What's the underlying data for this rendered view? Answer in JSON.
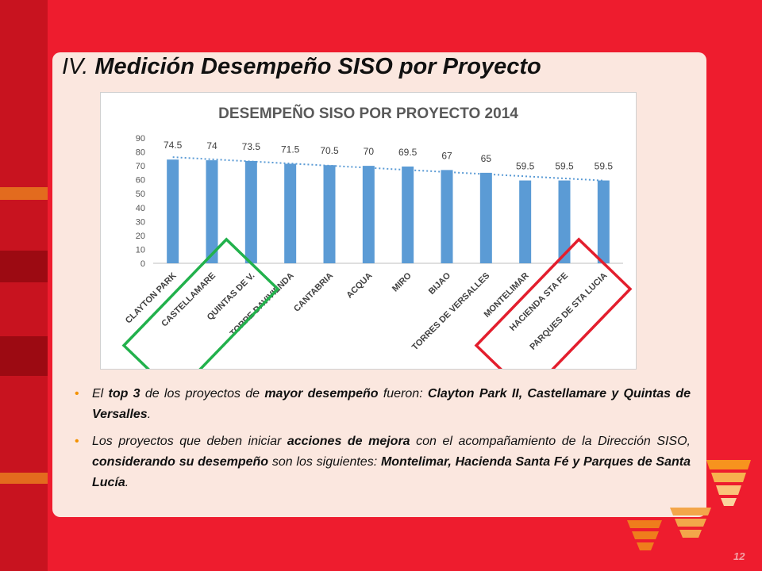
{
  "slide": {
    "title_roman": "IV.",
    "title": "Medición Desempeño SISO por Proyecto",
    "page_number": "12",
    "colors": {
      "background": "#ee1c2e",
      "panel": "#fbe7df",
      "bar": "#5b9bd5",
      "trend": "#5b9bd5",
      "bullet": "#f39200",
      "green_frame": "#22b14c",
      "red_frame": "#e31e2d"
    }
  },
  "bullets": [
    {
      "parts": [
        {
          "t": "El ",
          "b": false
        },
        {
          "t": "top 3",
          "b": true
        },
        {
          "t": " de los proyectos de ",
          "b": false
        },
        {
          "t": "mayor desempeño",
          "b": true
        },
        {
          "t": " fueron: ",
          "b": false
        },
        {
          "t": "Clayton Park II, Castellamare y Quintas de  Versalles",
          "b": true
        },
        {
          "t": ".",
          "b": false
        }
      ]
    },
    {
      "parts": [
        {
          "t": "Los proyectos que deben iniciar ",
          "b": false
        },
        {
          "t": "acciones de mejora",
          "b": true
        },
        {
          "t": " con el acompañamiento de la Dirección SISO, ",
          "b": false
        },
        {
          "t": "considerando su desempeño",
          "b": true
        },
        {
          "t": " son los siguientes: ",
          "b": false
        },
        {
          "t": "Montelimar, Hacienda Santa Fé y Parques de Santa Lucía",
          "b": true
        },
        {
          "t": ".",
          "b": false
        }
      ]
    }
  ],
  "chart_data": {
    "type": "bar",
    "title": "DESEMPEÑO SISO POR PROYECTO 2014",
    "xlabel": "",
    "ylabel": "",
    "ylim": [
      0,
      90
    ],
    "yticks": [
      0,
      10,
      20,
      30,
      40,
      50,
      60,
      70,
      80,
      90
    ],
    "grid": false,
    "trendline": "linear",
    "categories": [
      "CLAYTON PARK",
      "CASTELLAMARE",
      "QUINTAS DE V.",
      "TORRE DAVIVIENDA",
      "CANTABRIA",
      "ACQUA",
      "MIRO",
      "BIJAO",
      "TORRES DE VERSALLES",
      "MONTELIMAR",
      "HACIENDA STA FE",
      "PARQUES DE STA LUCIA"
    ],
    "values": [
      74.5,
      74,
      73.5,
      71.5,
      70.5,
      70,
      69.5,
      67,
      65,
      59.5,
      59.5,
      59.5
    ],
    "data_labels": [
      "74.5",
      "74",
      "73.5",
      "71.5",
      "70.5",
      "70",
      "69.5",
      "67",
      "65",
      "59.5",
      "59.5",
      "59.5"
    ],
    "highlights": [
      {
        "group": "top",
        "categories": [
          "CLAYTON PARK",
          "CASTELLAMARE",
          "QUINTAS DE V."
        ],
        "color": "#22b14c"
      },
      {
        "group": "bottom",
        "categories": [
          "MONTELIMAR",
          "HACIENDA STA FE",
          "PARQUES DE STA LUCIA"
        ],
        "color": "#e31e2d"
      }
    ]
  }
}
